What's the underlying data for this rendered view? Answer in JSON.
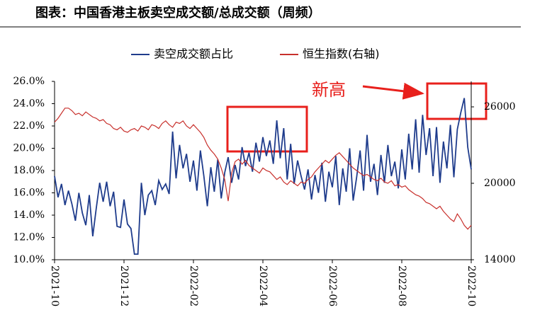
{
  "chart_data": {
    "type": "line",
    "title": "图表：中国香港主板卖空成交额/总成交额（周频）",
    "annotation": "新高",
    "categories": [
      "2021-10",
      null,
      null,
      null,
      null,
      null,
      null,
      null,
      null,
      null,
      null,
      null,
      null,
      null,
      null,
      null,
      null,
      null,
      null,
      null,
      "2021-12",
      null,
      null,
      null,
      null,
      null,
      null,
      null,
      null,
      null,
      null,
      null,
      null,
      null,
      null,
      null,
      null,
      null,
      null,
      null,
      "2022-02",
      null,
      null,
      null,
      null,
      null,
      null,
      null,
      null,
      null,
      null,
      null,
      null,
      null,
      null,
      null,
      null,
      null,
      null,
      null,
      "2022-04",
      null,
      null,
      null,
      null,
      null,
      null,
      null,
      null,
      null,
      null,
      null,
      null,
      null,
      null,
      null,
      null,
      null,
      null,
      null,
      "2022-06",
      null,
      null,
      null,
      null,
      null,
      null,
      null,
      null,
      null,
      null,
      null,
      null,
      null,
      null,
      null,
      null,
      null,
      null,
      null,
      "2022-08",
      null,
      null,
      null,
      null,
      null,
      null,
      null,
      null,
      null,
      null,
      null,
      null,
      null,
      null,
      null,
      null,
      null,
      null,
      null,
      "2022-10"
    ],
    "series": [
      {
        "name": "卖空成交额占比",
        "color": "#1f3c8c",
        "values": [
          17.5,
          15.6,
          16.8,
          14.9,
          16.2,
          15.0,
          13.5,
          16.0,
          14.2,
          13.1,
          15.8,
          12.1,
          14.6,
          16.9,
          15.2,
          17.0,
          14.8,
          16.1,
          13.0,
          12.9,
          15.4,
          13.2,
          12.8,
          10.5,
          10.5,
          16.9,
          14.0,
          15.8,
          16.2,
          14.9,
          17.1,
          16.3,
          16.8,
          15.9,
          21.5,
          17.3,
          20.3,
          18.2,
          19.5,
          17.0,
          18.9,
          16.2,
          19.8,
          17.5,
          14.8,
          18.3,
          16.1,
          19.0,
          15.5,
          17.8,
          19.2,
          16.9,
          18.5,
          17.2,
          20.1,
          18.4,
          19.6,
          17.9,
          20.5,
          18.8,
          21.0,
          19.3,
          20.7,
          18.6,
          22.5,
          19.1,
          21.8,
          17.2,
          20.4,
          16.8,
          18.9,
          17.5,
          16.3,
          18.1,
          15.4,
          17.6,
          16.0,
          18.7,
          15.2,
          17.9,
          16.5,
          19.3,
          14.9,
          18.2,
          16.1,
          20.0,
          15.3,
          17.4,
          19.8,
          16.2,
          21.2,
          17.0,
          18.6,
          15.8,
          19.4,
          16.9,
          20.3,
          17.5,
          18.8,
          16.4,
          19.9,
          17.2,
          21.3,
          18.1,
          22.6,
          17.8,
          23.0,
          19.4,
          21.8,
          17.5,
          21.9,
          16.9,
          20.6,
          18.2,
          22.1,
          17.4,
          21.7,
          23.2,
          24.5,
          20.1,
          18.1
        ]
      },
      {
        "name": "恒生指数(右轴)",
        "color": "#c8302c",
        "axis": "y2",
        "values": [
          24800,
          25100,
          25500,
          25900,
          25900,
          25700,
          25400,
          25500,
          25300,
          25600,
          25400,
          25200,
          25100,
          24900,
          25000,
          24700,
          24600,
          24300,
          24200,
          24400,
          24100,
          24000,
          24200,
          24300,
          24100,
          24500,
          24400,
          24200,
          24600,
          24500,
          24300,
          24700,
          24900,
          24600,
          24400,
          24800,
          24700,
          24900,
          24500,
          24300,
          24600,
          24300,
          24000,
          23600,
          23000,
          22600,
          22300,
          21900,
          21200,
          20300,
          18600,
          20800,
          21700,
          21900,
          21500,
          21800,
          21400,
          21200,
          21000,
          20800,
          21200,
          21000,
          20900,
          20600,
          20300,
          20500,
          20100,
          19900,
          20200,
          20000,
          19800,
          20100,
          20000,
          20300,
          20500,
          20900,
          21200,
          21500,
          21800,
          21600,
          21900,
          22200,
          22400,
          22100,
          21800,
          21500,
          21200,
          21000,
          20800,
          20600,
          20700,
          20500,
          20300,
          20200,
          20400,
          20100,
          20000,
          20200,
          19800,
          19900,
          19700,
          19800,
          19500,
          19300,
          19100,
          19000,
          18800,
          18500,
          18400,
          18200,
          18000,
          18200,
          17800,
          17500,
          17200,
          17000,
          17600,
          17200,
          16700,
          16400,
          16700
        ]
      }
    ],
    "ylim": [
      10,
      26
    ],
    "yticks": [
      {
        "value": 10,
        "label": "10.0%"
      },
      {
        "value": 12,
        "label": "12.0%"
      },
      {
        "value": 14,
        "label": "14.0%"
      },
      {
        "value": 16,
        "label": "16.0%"
      },
      {
        "value": 18,
        "label": "18.0%"
      },
      {
        "value": 20,
        "label": "20.0%"
      },
      {
        "value": 22,
        "label": "22.0%"
      },
      {
        "value": 24,
        "label": "24.0%"
      },
      {
        "value": 26,
        "label": "26.0%"
      }
    ],
    "y2lim": [
      14000,
      28000
    ],
    "y2ticks": [
      14000,
      20000,
      26000
    ],
    "grid": false
  }
}
